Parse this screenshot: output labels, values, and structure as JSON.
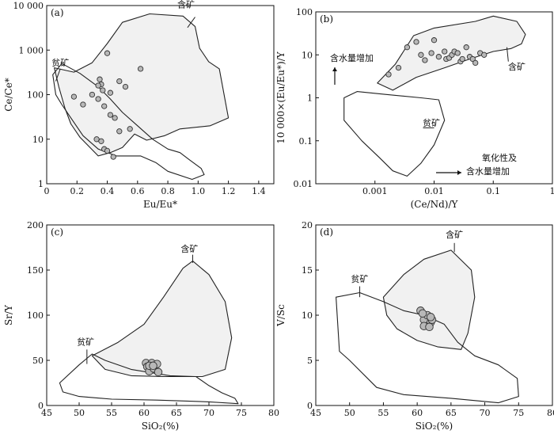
{
  "chart_data": [
    {
      "panel": "(a)",
      "type": "scatter",
      "xlabel": "Eu/Eu*",
      "ylabel": "Ce/Ce*",
      "xscale": "linear",
      "yscale": "log",
      "xlim": [
        0,
        1.5
      ],
      "ylim": [
        1,
        10000
      ],
      "xticks": [
        "0",
        "0.2",
        "0.4",
        "0.6",
        "0.8",
        "1.0",
        "1.2",
        "1.4"
      ],
      "yticks": [
        "1",
        "10",
        "100",
        "1 000",
        "10 000"
      ],
      "regions": [
        {
          "label": "含矿",
          "polygon": [
            [
              0.05,
              400
            ],
            [
              0.18,
              320
            ],
            [
              0.3,
              520
            ],
            [
              0.4,
              1400
            ],
            [
              0.5,
              4200
            ],
            [
              0.68,
              6500
            ],
            [
              0.9,
              5800
            ],
            [
              0.98,
              3400
            ],
            [
              1.01,
              1100
            ],
            [
              1.07,
              550
            ],
            [
              1.14,
              380
            ],
            [
              1.2,
              30
            ],
            [
              1.08,
              20
            ],
            [
              0.88,
              17
            ],
            [
              0.78,
              12
            ],
            [
              0.66,
              9.5
            ],
            [
              0.58,
              13
            ],
            [
              0.5,
              6.5
            ],
            [
              0.42,
              5
            ],
            [
              0.34,
              4.2
            ],
            [
              0.22,
              11
            ],
            [
              0.16,
              22
            ],
            [
              0.12,
              50
            ],
            [
              0.08,
              150
            ],
            [
              0.05,
              400
            ]
          ],
          "filled": true
        },
        {
          "label": "贫矿",
          "polygon": [
            [
              0.04,
              280
            ],
            [
              0.1,
              500
            ],
            [
              0.22,
              300
            ],
            [
              0.34,
              150
            ],
            [
              0.42,
              80
            ],
            [
              0.5,
              40
            ],
            [
              0.6,
              20
            ],
            [
              0.7,
              10
            ],
            [
              0.8,
              6
            ],
            [
              0.88,
              5
            ],
            [
              0.94,
              3.5
            ],
            [
              1.02,
              2.2
            ],
            [
              1.04,
              1.6
            ],
            [
              0.96,
              1.25
            ],
            [
              0.8,
              1.9
            ],
            [
              0.72,
              3
            ],
            [
              0.62,
              4.2
            ],
            [
              0.46,
              4.2
            ],
            [
              0.34,
              6
            ],
            [
              0.24,
              12
            ],
            [
              0.16,
              30
            ],
            [
              0.1,
              60
            ],
            [
              0.06,
              100
            ],
            [
              0.04,
              280
            ]
          ],
          "filled": false
        }
      ],
      "points": [
        [
          0.4,
          850
        ],
        [
          0.62,
          380
        ],
        [
          0.35,
          220
        ],
        [
          0.36,
          170
        ],
        [
          0.34,
          160
        ],
        [
          0.37,
          125
        ],
        [
          0.3,
          100
        ],
        [
          0.18,
          90
        ],
        [
          0.42,
          110
        ],
        [
          0.48,
          200
        ],
        [
          0.52,
          150
        ],
        [
          0.34,
          80
        ],
        [
          0.38,
          55
        ],
        [
          0.24,
          60
        ],
        [
          0.42,
          35
        ],
        [
          0.45,
          30
        ],
        [
          0.48,
          15
        ],
        [
          0.55,
          17
        ],
        [
          0.33,
          10
        ],
        [
          0.36,
          9
        ],
        [
          0.38,
          6
        ],
        [
          0.4,
          5.5
        ],
        [
          0.44,
          4
        ]
      ]
    },
    {
      "panel": "(b)",
      "type": "scatter",
      "xlabel": "(Ce/Nd)/Y",
      "ylabel": "10 000×(Eu/Eu*)/Y",
      "xscale": "log",
      "yscale": "log",
      "xlim": [
        0.0001,
        1
      ],
      "ylim": [
        0.01,
        100
      ],
      "xticks": [
        "0.001",
        "0.01",
        "0.1",
        "1"
      ],
      "yticks": [
        "0.01",
        "0.1",
        "1",
        "10",
        "100"
      ],
      "annotations": [
        "含水量增加",
        "氧化性及",
        "含水量增加"
      ],
      "regions": [
        {
          "label": "含矿",
          "polygon": [
            [
              0.0011,
              2.2
            ],
            [
              0.0022,
              6
            ],
            [
              0.0045,
              28
            ],
            [
              0.01,
              42
            ],
            [
              0.05,
              60
            ],
            [
              0.1,
              80
            ],
            [
              0.25,
              60
            ],
            [
              0.35,
              30
            ],
            [
              0.3,
              18
            ],
            [
              0.2,
              14
            ],
            [
              0.1,
              12
            ],
            [
              0.04,
              8
            ],
            [
              0.015,
              5
            ],
            [
              0.005,
              3
            ],
            [
              0.002,
              1.5
            ],
            [
              0.0011,
              2.2
            ]
          ],
          "filled": true
        },
        {
          "label": "贫矿",
          "polygon": [
            [
              0.0003,
              1
            ],
            [
              0.0005,
              1.4
            ],
            [
              0.0015,
              1.2
            ],
            [
              0.006,
              1
            ],
            [
              0.012,
              0.9
            ],
            [
              0.015,
              0.3
            ],
            [
              0.01,
              0.08
            ],
            [
              0.006,
              0.03
            ],
            [
              0.0035,
              0.015
            ],
            [
              0.002,
              0.02
            ],
            [
              0.0012,
              0.04
            ],
            [
              0.0006,
              0.1
            ],
            [
              0.0003,
              0.3
            ],
            [
              0.0003,
              1
            ]
          ],
          "filled": false
        }
      ],
      "points": [
        [
          0.0017,
          3.5
        ],
        [
          0.0025,
          5
        ],
        [
          0.0035,
          15
        ],
        [
          0.005,
          20
        ],
        [
          0.006,
          10
        ],
        [
          0.007,
          7.5
        ],
        [
          0.009,
          11
        ],
        [
          0.01,
          22
        ],
        [
          0.012,
          9
        ],
        [
          0.015,
          12
        ],
        [
          0.016,
          8
        ],
        [
          0.018,
          8.5
        ],
        [
          0.02,
          10
        ],
        [
          0.022,
          12
        ],
        [
          0.025,
          11
        ],
        [
          0.028,
          7
        ],
        [
          0.03,
          8
        ],
        [
          0.035,
          15
        ],
        [
          0.04,
          9
        ],
        [
          0.045,
          8
        ],
        [
          0.05,
          6.5
        ],
        [
          0.06,
          11
        ],
        [
          0.07,
          10
        ]
      ]
    },
    {
      "panel": "(c)",
      "type": "scatter",
      "xlabel": "SiO₂(%)",
      "ylabel": "Sr/Y",
      "xscale": "linear",
      "yscale": "linear",
      "xlim": [
        45,
        80
      ],
      "ylim": [
        0,
        200
      ],
      "xticks": [
        "45",
        "50",
        "55",
        "60",
        "65",
        "70",
        "75",
        "80"
      ],
      "yticks": [
        "0",
        "50",
        "100",
        "150",
        "200"
      ],
      "regions": [
        {
          "label": "含矿",
          "polygon": [
            [
              52,
              55
            ],
            [
              56,
              70
            ],
            [
              60,
              90
            ],
            [
              63,
              120
            ],
            [
              66,
              152
            ],
            [
              67.5,
              160
            ],
            [
              70,
              145
            ],
            [
              72.5,
              115
            ],
            [
              73.5,
              75
            ],
            [
              72.5,
              40
            ],
            [
              69,
              32
            ],
            [
              63,
              32
            ],
            [
              58,
              33
            ],
            [
              54,
              40
            ],
            [
              52,
              55
            ]
          ],
          "filled": true
        },
        {
          "label": "贫矿",
          "polygon": [
            [
              47,
              25
            ],
            [
              50,
              45
            ],
            [
              52,
              57
            ],
            [
              54,
              50
            ],
            [
              58,
              40
            ],
            [
              64,
              33
            ],
            [
              68,
              32
            ],
            [
              70,
              22
            ],
            [
              72,
              14
            ],
            [
              74,
              8
            ],
            [
              74.5,
              2
            ],
            [
              70,
              4
            ],
            [
              62,
              6
            ],
            [
              55,
              7
            ],
            [
              50,
              10
            ],
            [
              47.5,
              15
            ],
            [
              47,
              25
            ]
          ],
          "filled": false
        }
      ],
      "points": [
        [
          60.3,
          47
        ],
        [
          60.5,
          43
        ],
        [
          60.8,
          38
        ],
        [
          61.2,
          47
        ],
        [
          61.5,
          41
        ],
        [
          62,
          46
        ],
        [
          62.2,
          37
        ],
        [
          60.8,
          44
        ],
        [
          61.4,
          44
        ]
      ]
    },
    {
      "panel": "(d)",
      "type": "scatter",
      "xlabel": "SiO₂(%)",
      "ylabel": "V/Sc",
      "xscale": "linear",
      "yscale": "linear",
      "xlim": [
        45,
        80
      ],
      "ylim": [
        0,
        20
      ],
      "xticks": [
        "45",
        "50",
        "55",
        "60",
        "65",
        "70",
        "75",
        "80"
      ],
      "yticks": [
        "0",
        "5",
        "10",
        "15",
        "20"
      ],
      "regions": [
        {
          "label": "含矿",
          "polygon": [
            [
              55,
              12
            ],
            [
              58,
              14.5
            ],
            [
              61,
              16.2
            ],
            [
              65,
              17.2
            ],
            [
              68,
              15
            ],
            [
              68.5,
              12
            ],
            [
              67.5,
              8
            ],
            [
              66.5,
              6.2
            ],
            [
              63,
              6.5
            ],
            [
              60,
              7.2
            ],
            [
              57,
              8.5
            ],
            [
              55.5,
              10
            ],
            [
              55,
              12
            ]
          ],
          "filled": true
        },
        {
          "label": "贫矿",
          "polygon": [
            [
              48,
              12
            ],
            [
              51.5,
              12.5
            ],
            [
              55,
              11.5
            ],
            [
              58,
              10.5
            ],
            [
              61,
              10
            ],
            [
              64,
              9
            ],
            [
              66,
              7
            ],
            [
              68.5,
              5.5
            ],
            [
              72,
              4.5
            ],
            [
              74.8,
              3
            ],
            [
              75,
              1
            ],
            [
              72,
              0.3
            ],
            [
              65,
              0.8
            ],
            [
              58,
              1.2
            ],
            [
              54,
              2
            ],
            [
              50,
              5
            ],
            [
              48.5,
              6
            ],
            [
              48,
              12
            ]
          ],
          "filled": false
        }
      ],
      "points": [
        [
          60.5,
          10.5
        ],
        [
          61,
          9.5
        ],
        [
          61.5,
          10
        ],
        [
          62,
          9.2
        ],
        [
          61,
          8.8
        ],
        [
          62.2,
          9.5
        ],
        [
          60.8,
          10.2
        ],
        [
          61.8,
          8.7
        ],
        [
          62,
          9.8
        ]
      ]
    }
  ]
}
